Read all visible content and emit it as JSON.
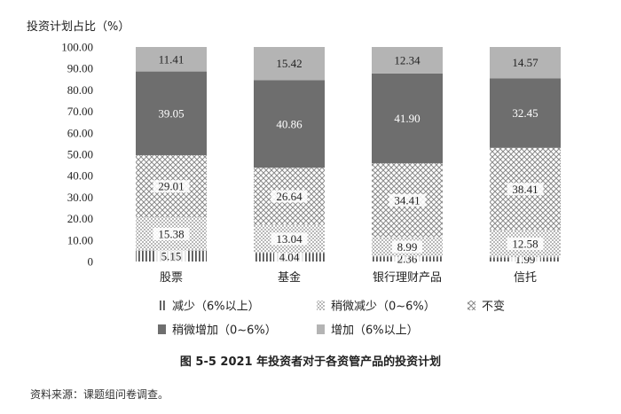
{
  "chart_data": {
    "type": "bar",
    "stacked": true,
    "ylabel": "投资计划占比（%）",
    "ylim": [
      0,
      100
    ],
    "yticks": [
      "0",
      "10.00",
      "20.00",
      "30.00",
      "40.00",
      "50.00",
      "60.00",
      "70.00",
      "80.00",
      "90.00",
      "100.00"
    ],
    "categories": [
      "股票",
      "基金",
      "银行理财产品",
      "信托"
    ],
    "series": [
      {
        "name": "减少（6%以上）",
        "values": [
          5.15,
          4.04,
          2.36,
          1.99
        ],
        "labels": [
          "5.15",
          "4.04",
          "2.36",
          "1.99"
        ],
        "fill": "hatch-vertical",
        "label_color": "#222222"
      },
      {
        "name": "稍微减少（0~6%）",
        "values": [
          15.38,
          13.04,
          8.99,
          12.58
        ],
        "labels": [
          "15.38",
          "13.04",
          "8.99",
          "12.58"
        ],
        "fill": "dots",
        "label_color": "#222222"
      },
      {
        "name": "不变",
        "values": [
          29.01,
          26.64,
          34.41,
          38.41
        ],
        "labels": [
          "29.01",
          "26.64",
          "34.41",
          "38.41"
        ],
        "fill": "crosshatch",
        "label_color": "#222222"
      },
      {
        "name": "稍微增加（0~6%）",
        "values": [
          39.05,
          40.86,
          41.9,
          32.45
        ],
        "labels": [
          "39.05",
          "40.86",
          "41.90",
          "32.45"
        ],
        "fill": "#6e6e6e",
        "label_color": "#ffffff"
      },
      {
        "name": "增加（6%以上）",
        "values": [
          11.41,
          15.42,
          12.34,
          14.57
        ],
        "labels": [
          "11.41",
          "15.42",
          "12.34",
          "14.57"
        ],
        "fill": "#b4b4b4",
        "label_color": "#222222"
      }
    ],
    "legend_position": "bottom",
    "grid": false
  },
  "caption": "图 5-5   2021 年投资者对于各资管产品的投资计划",
  "source": "资料来源：课题组问卷调查。"
}
